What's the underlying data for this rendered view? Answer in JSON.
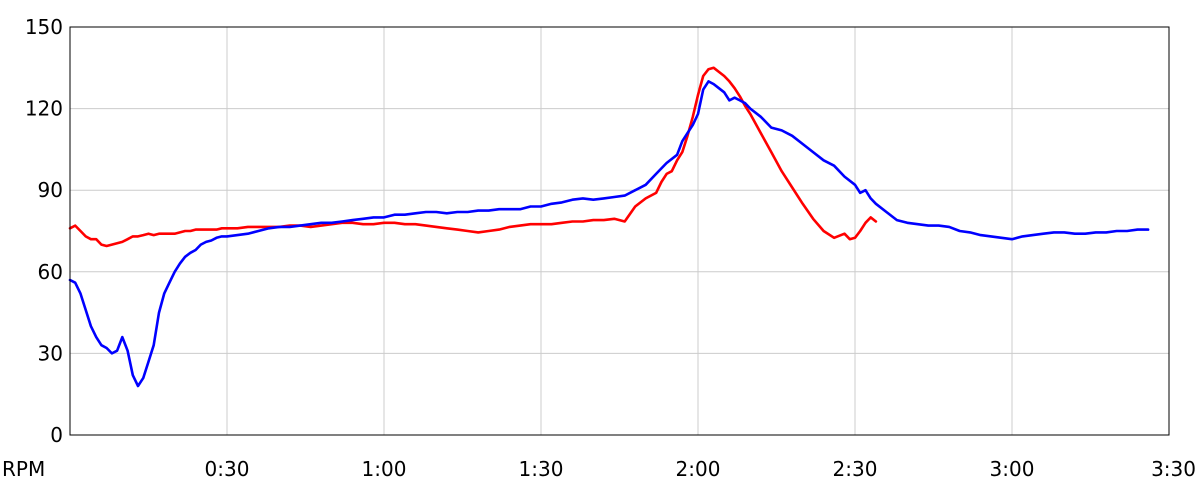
{
  "chart_data": {
    "type": "line",
    "xlabel": "RPM",
    "ylabel": "",
    "x_unit": "seconds",
    "xlim": [
      0,
      210
    ],
    "ylim": [
      0,
      150
    ],
    "grid": true,
    "legend": "none",
    "y_ticks": [
      {
        "value": 0,
        "label": "0"
      },
      {
        "value": 30,
        "label": "30"
      },
      {
        "value": 60,
        "label": "60"
      },
      {
        "value": 90,
        "label": "90"
      },
      {
        "value": 120,
        "label": "120"
      },
      {
        "value": 150,
        "label": "150"
      }
    ],
    "x_ticks": [
      {
        "value": 30,
        "label": "0:30"
      },
      {
        "value": 60,
        "label": "1:00"
      },
      {
        "value": 90,
        "label": "1:30"
      },
      {
        "value": 120,
        "label": "2:00"
      },
      {
        "value": 150,
        "label": "2:30"
      },
      {
        "value": 180,
        "label": "3:00"
      },
      {
        "value": 210,
        "label": "3:30"
      }
    ],
    "series": [
      {
        "color": "#ff0000",
        "x": [
          0,
          1,
          2,
          3,
          4,
          5,
          6,
          7,
          8,
          9,
          10,
          11,
          12,
          13,
          14,
          15,
          16,
          17,
          18,
          19,
          20,
          21,
          22,
          23,
          24,
          25,
          26,
          27,
          28,
          29,
          30,
          32,
          34,
          36,
          38,
          40,
          42,
          44,
          46,
          48,
          50,
          52,
          54,
          56,
          58,
          60,
          62,
          64,
          66,
          68,
          70,
          72,
          74,
          76,
          78,
          80,
          82,
          84,
          86,
          88,
          90,
          92,
          94,
          96,
          98,
          100,
          102,
          104,
          106,
          108,
          110,
          112,
          113,
          114,
          115,
          116,
          117,
          118,
          119,
          120,
          121,
          122,
          123,
          124,
          125,
          126,
          127,
          128,
          129,
          130,
          132,
          134,
          136,
          138,
          140,
          142,
          144,
          146,
          148,
          149,
          150,
          151,
          152,
          153,
          154
        ],
        "y": [
          76,
          77,
          75,
          73,
          72,
          72,
          70,
          69.5,
          70,
          70.5,
          71,
          72,
          73,
          73,
          73.5,
          74,
          73.5,
          74,
          74,
          74,
          74,
          74.5,
          75,
          75,
          75.5,
          75.5,
          75.5,
          75.5,
          75.5,
          76,
          76,
          76,
          76.5,
          76.5,
          76.5,
          76.5,
          77,
          77,
          76.5,
          77,
          77.5,
          78,
          78,
          77.5,
          77.5,
          78,
          78,
          77.5,
          77.5,
          77,
          76.5,
          76,
          75.5,
          75,
          74.5,
          75,
          75.5,
          76.5,
          77,
          77.5,
          77.5,
          77.5,
          78,
          78.5,
          78.5,
          79,
          79,
          79.5,
          78.5,
          84,
          87,
          89,
          93,
          96,
          97,
          101,
          104,
          110,
          117,
          125,
          132,
          134.5,
          135,
          133.5,
          132,
          130,
          127.5,
          124.5,
          121,
          118,
          111,
          104,
          97,
          91,
          85,
          79.5,
          75,
          72.5,
          74,
          72,
          72.5,
          75,
          78,
          80,
          78.5
        ]
      },
      {
        "color": "#0000ff",
        "x": [
          0,
          1,
          2,
          3,
          4,
          5,
          6,
          7,
          8,
          9,
          10,
          11,
          12,
          13,
          14,
          15,
          16,
          17,
          18,
          19,
          20,
          21,
          22,
          23,
          24,
          25,
          26,
          27,
          28,
          29,
          30,
          32,
          34,
          36,
          38,
          40,
          42,
          44,
          46,
          48,
          50,
          52,
          54,
          56,
          58,
          60,
          62,
          64,
          66,
          68,
          70,
          72,
          74,
          76,
          78,
          80,
          82,
          84,
          86,
          88,
          90,
          92,
          94,
          96,
          98,
          100,
          102,
          104,
          106,
          108,
          110,
          112,
          114,
          116,
          117,
          118,
          119,
          120,
          121,
          122,
          123,
          124,
          125,
          126,
          127,
          128,
          129,
          130,
          132,
          134,
          136,
          138,
          140,
          142,
          144,
          146,
          148,
          150,
          151,
          152,
          153,
          154,
          156,
          158,
          160,
          162,
          164,
          166,
          168,
          170,
          172,
          174,
          176,
          178,
          180,
          182,
          184,
          186,
          188,
          190,
          192,
          194,
          196,
          198,
          200,
          202,
          204,
          206
        ],
        "y": [
          57,
          56,
          52,
          46,
          40,
          36,
          33,
          32,
          30,
          31,
          36,
          31,
          22,
          18,
          21,
          27,
          33,
          45,
          52,
          56,
          60,
          63,
          65.5,
          67,
          68,
          70,
          71,
          71.5,
          72.5,
          73,
          73,
          73.5,
          74,
          75,
          76,
          76.5,
          76.5,
          77,
          77.5,
          78,
          78,
          78.5,
          79,
          79.5,
          80,
          80,
          81,
          81,
          81.5,
          82,
          82,
          81.5,
          82,
          82,
          82.5,
          82.5,
          83,
          83,
          83,
          84,
          84,
          85,
          85.5,
          86.5,
          87,
          86.5,
          87,
          87.5,
          88,
          90,
          92,
          96,
          100,
          103,
          108,
          111,
          114,
          118,
          127,
          130,
          129,
          127.5,
          126,
          123,
          124,
          123,
          122,
          120,
          117,
          113,
          112,
          110,
          107,
          104,
          101,
          99,
          95,
          92,
          89,
          90,
          87,
          85,
          82,
          79,
          78,
          77.5,
          77,
          77,
          76.5,
          75,
          74.5,
          73.5,
          73,
          72.5,
          72,
          73,
          73.5,
          74,
          74.5,
          74.5,
          74,
          74,
          74.5,
          74.5,
          75,
          75,
          75.5,
          75.5
        ]
      }
    ]
  }
}
